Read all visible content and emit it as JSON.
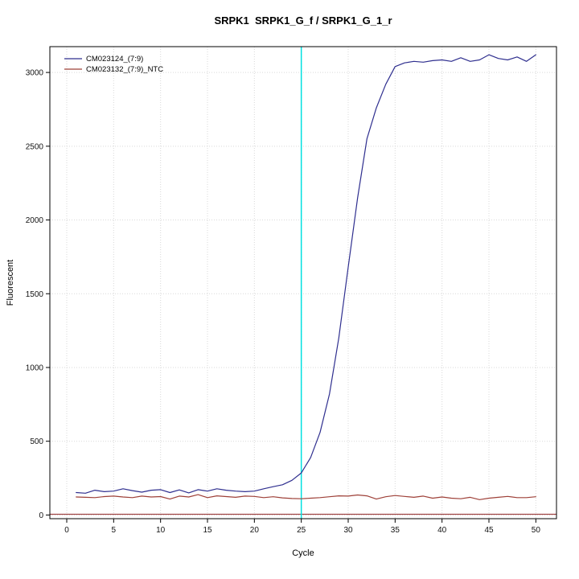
{
  "chart_data": {
    "type": "line",
    "title": "SRPK1  SRPK1_G_f / SRPK1_G_1_r",
    "xlabel": "Cycle",
    "ylabel": "Fluorescent",
    "xlim": [
      -1.8,
      52.2
    ],
    "ylim": [
      -25,
      3175
    ],
    "x_ticks": [
      0,
      5,
      10,
      15,
      20,
      25,
      30,
      35,
      40,
      45,
      50
    ],
    "y_ticks": [
      0,
      500,
      1000,
      1500,
      2000,
      2500,
      3000
    ],
    "grid": "dotted",
    "legend_position": "top-left",
    "frame_color": "#000000",
    "threshold_line": {
      "y": 5,
      "color": "#a04545"
    },
    "marker_line": {
      "x": 25,
      "color": "#00e0e0"
    },
    "x": [
      1,
      2,
      3,
      4,
      5,
      6,
      7,
      8,
      9,
      10,
      11,
      12,
      13,
      14,
      15,
      16,
      17,
      18,
      19,
      20,
      21,
      22,
      23,
      24,
      25,
      26,
      27,
      28,
      29,
      30,
      31,
      32,
      33,
      34,
      35,
      36,
      37,
      38,
      39,
      40,
      41,
      42,
      43,
      44,
      45,
      46,
      47,
      48,
      49,
      50
    ],
    "series": [
      {
        "name": "CM023124_(7:9)",
        "color": "#2f2f8f",
        "values": [
          152,
          148,
          168,
          158,
          162,
          178,
          165,
          155,
          168,
          172,
          152,
          170,
          150,
          172,
          162,
          178,
          168,
          162,
          158,
          162,
          178,
          192,
          205,
          235,
          285,
          390,
          560,
          820,
          1200,
          1680,
          2150,
          2550,
          2760,
          2920,
          3040,
          3065,
          3075,
          3070,
          3080,
          3085,
          3075,
          3100,
          3075,
          3085,
          3120,
          3095,
          3085,
          3105,
          3075,
          3120
        ]
      },
      {
        "name": "CM023132_(7:9)_NTC",
        "color": "#9e4038",
        "values": [
          122,
          120,
          118,
          125,
          128,
          122,
          118,
          128,
          122,
          125,
          108,
          128,
          122,
          138,
          118,
          130,
          125,
          120,
          128,
          126,
          118,
          124,
          116,
          112,
          110,
          114,
          118,
          124,
          130,
          128,
          136,
          130,
          108,
          124,
          132,
          126,
          120,
          128,
          114,
          122,
          114,
          110,
          120,
          104,
          114,
          120,
          126,
          118,
          118,
          124
        ]
      }
    ]
  }
}
